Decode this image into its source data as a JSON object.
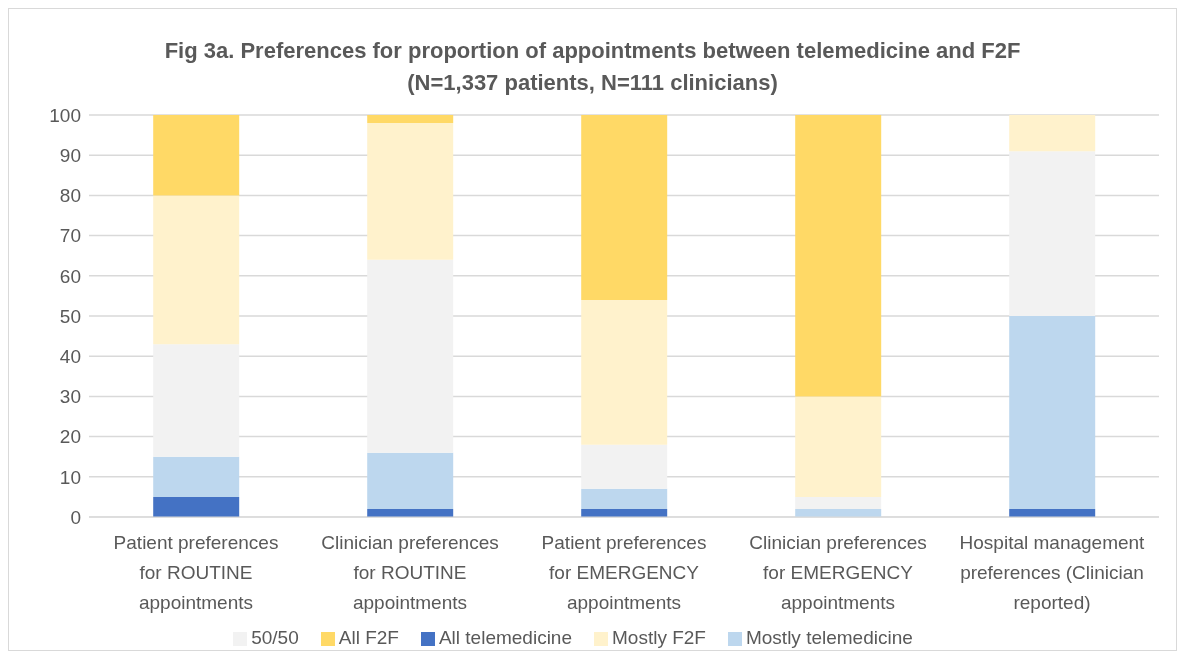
{
  "chart_data": {
    "type": "bar",
    "title": "Fig 3a. Preferences for proportion of appointments between telemedicine and F2F",
    "subtitle": "(N=1,337 patients, N=111 clinicians)",
    "categories": [
      "Patient preferences for ROUTINE appointments",
      "Clinician preferences for ROUTINE appointments",
      "Patient preferences for EMERGENCY appointments",
      "Clinician preferences for EMERGENCY appointments",
      "Hospital management preferences (Clinician reported)"
    ],
    "stacked": true,
    "series": [
      {
        "name": "All telemedicine",
        "color": "#4472c4",
        "values": [
          5,
          2,
          2,
          0,
          2
        ]
      },
      {
        "name": "Mostly telemedicine",
        "color": "#bdd7ee",
        "values": [
          10,
          14,
          5,
          2,
          48
        ]
      },
      {
        "name": "50/50",
        "color": "#f2f2f2",
        "values": [
          28,
          48,
          11,
          3,
          41
        ]
      },
      {
        "name": "Mostly F2F",
        "color": "#fff2cc",
        "values": [
          37,
          34,
          36,
          25,
          9
        ]
      },
      {
        "name": "All F2F",
        "color": "#ffd966",
        "values": [
          20,
          2,
          46,
          70,
          0
        ]
      }
    ],
    "ylim": [
      0,
      100
    ],
    "yticks": [
      0,
      10,
      20,
      30,
      40,
      50,
      60,
      70,
      80,
      90,
      100
    ],
    "grid": "y",
    "legend": "bottom"
  }
}
